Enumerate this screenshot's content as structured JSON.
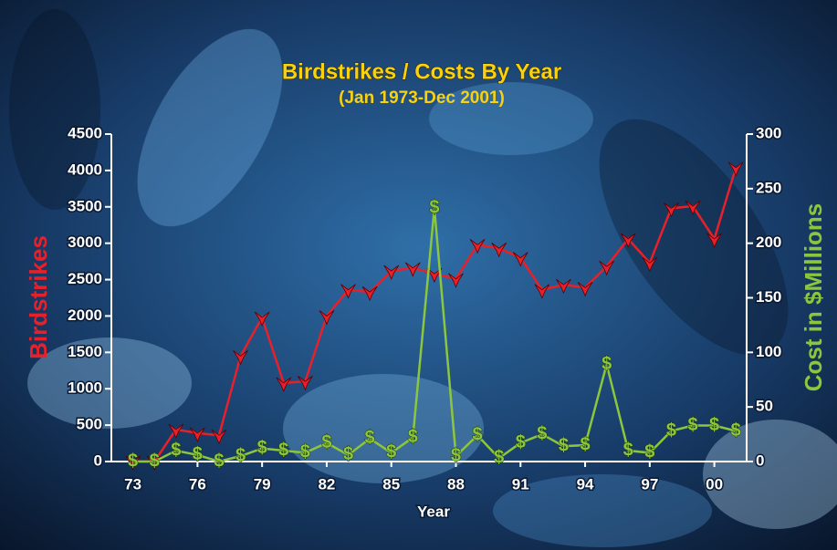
{
  "chart_data": {
    "type": "line",
    "title": "Birdstrikes / Costs By Year",
    "subtitle": "(Jan 1973-Dec 2001)",
    "xlabel": "Year",
    "ylabel": "Birdstrikes",
    "y2label": "Cost in $Millions",
    "x": [
      1973,
      1974,
      1975,
      1976,
      1977,
      1978,
      1979,
      1980,
      1981,
      1982,
      1983,
      1984,
      1985,
      1986,
      1987,
      1988,
      1989,
      1990,
      1991,
      1992,
      1993,
      1994,
      1995,
      1996,
      1997,
      1998,
      1999,
      2000,
      2001
    ],
    "xlim": [
      1972,
      2001.5
    ],
    "xticks": [
      {
        "value": 1973,
        "label": "73"
      },
      {
        "value": 1976,
        "label": "76"
      },
      {
        "value": 1979,
        "label": "79"
      },
      {
        "value": 1982,
        "label": "82"
      },
      {
        "value": 1985,
        "label": "85"
      },
      {
        "value": 1988,
        "label": "88"
      },
      {
        "value": 1991,
        "label": "91"
      },
      {
        "value": 1994,
        "label": "94"
      },
      {
        "value": 1997,
        "label": "97"
      },
      {
        "value": 2000,
        "label": "00"
      }
    ],
    "ylim": [
      0,
      4500
    ],
    "yticks": [
      0,
      500,
      1000,
      1500,
      2000,
      2500,
      3000,
      3500,
      4000,
      4500
    ],
    "y2lim": [
      0,
      300
    ],
    "y2ticks": [
      0,
      50,
      100,
      150,
      200,
      250,
      300
    ],
    "series": [
      {
        "name": "Birdstrikes",
        "color": "#e8202a",
        "values": [
          0,
          0,
          440,
          390,
          360,
          1450,
          1980,
          1080,
          1100,
          2000,
          2360,
          2330,
          2620,
          2660,
          2580,
          2510,
          2980,
          2930,
          2800,
          2360,
          2430,
          2390,
          2680,
          3060,
          2730,
          3480,
          3510,
          3060,
          4040
        ]
      },
      {
        "name": "Cost in $Millions",
        "color": "#8cc63f",
        "axis": "y2",
        "marker": "$",
        "values": [
          0,
          0,
          10,
          6,
          0,
          5,
          12,
          10,
          8,
          17,
          6,
          21,
          8,
          22,
          232,
          5,
          24,
          3,
          17,
          25,
          14,
          15,
          89,
          10,
          8,
          28,
          33,
          33,
          28
        ]
      }
    ]
  }
}
